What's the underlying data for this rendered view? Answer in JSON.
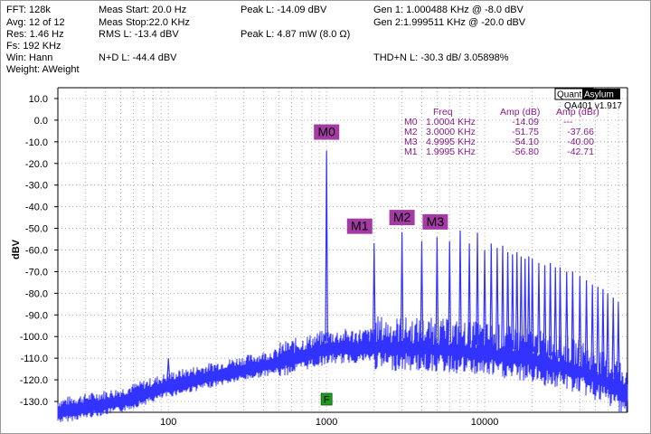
{
  "header": {
    "fft": "FFT: 128k",
    "avg": "Avg: 12 of 12",
    "res": "Res: 1.46 Hz",
    "fs": "Fs: 192 KHz",
    "win": "Win: Hann",
    "weight": "Weight: AWeight",
    "meas_start": "Meas Start: 20.0 Hz",
    "meas_stop": "Meas Stop:22.0 KHz",
    "rms_l": "RMS L: -13.4 dBV",
    "nd_l": "N+D L: -44.4 dBV",
    "peak_l_dbv": "Peak L: -14.09 dBV",
    "peak_l_mw": "Peak L: 4.87 mW (8.0 Ω)",
    "gen1": "Gen 1: 1.000488 KHz @ -8.0  dBV",
    "gen2": "Gen 2:1.999511 KHz @ -20.0  dBV",
    "thd_n": "THD+N L: -30.3 dB/ 3.05898%"
  },
  "brand": {
    "left": "Quant",
    "right": "Asylum",
    "version": "QA401 v1.917"
  },
  "marker_table": {
    "headers": [
      "Freq",
      "Amp (dB)",
      "Amp (dBr)"
    ],
    "rows": [
      {
        "name": "M0",
        "freq": "1.0004 KHz",
        "amp": "-14.09",
        "ampr": "---"
      },
      {
        "name": "M2",
        "freq": "3.0000 KHz",
        "amp": "-51.75",
        "ampr": "-37.66"
      },
      {
        "name": "M3",
        "freq": "4.9995 KHz",
        "amp": "-54.10",
        "ampr": "-40.00"
      },
      {
        "name": "M1",
        "freq": "1.9995 KHz",
        "amp": "-56.80",
        "ampr": "-42.71"
      }
    ]
  },
  "colors": {
    "trace": "#3333ff",
    "marker_fill": "#a43aa4",
    "marker_text": "#8b1a8b",
    "f_marker": "#1f9a1f",
    "grid": "#9a9a9a"
  },
  "chart_data": {
    "type": "line",
    "x_scale": "log",
    "xlim": [
      20,
      80000
    ],
    "ylim": [
      -135,
      15
    ],
    "ylabel": "dBV",
    "xlabel": "",
    "grid": true,
    "x_ticks": [
      100,
      1000,
      10000
    ],
    "x_tick_labels": [
      "100",
      "1000",
      "10000"
    ],
    "y_ticks": [
      10,
      0,
      -10,
      -20,
      -30,
      -40,
      -50,
      -60,
      -70,
      -80,
      -90,
      -100,
      -110,
      -120,
      -130
    ],
    "y_tick_labels": [
      "10.0",
      "0.0",
      "-10.0",
      "-20.0",
      "-30.0",
      "-40.0",
      "-50.0",
      "-60.0",
      "-70.0",
      "-80.0",
      "-90.0",
      "-100.0",
      "-110.0",
      "-120.0",
      "-130.0"
    ],
    "peaks": [
      {
        "freq": 100,
        "amp": -110
      },
      {
        "freq": 1000.4,
        "amp": -14.09
      },
      {
        "freq": 1999.5,
        "amp": -56.8
      },
      {
        "freq": 3000,
        "amp": -51.75
      },
      {
        "freq": 4000,
        "amp": -56
      },
      {
        "freq": 4999.5,
        "amp": -54.1
      },
      {
        "freq": 6000,
        "amp": -56
      },
      {
        "freq": 7000,
        "amp": -51
      },
      {
        "freq": 8000,
        "amp": -57
      },
      {
        "freq": 9000,
        "amp": -52
      },
      {
        "freq": 10000,
        "amp": -60
      },
      {
        "freq": 11000,
        "amp": -57
      },
      {
        "freq": 12000,
        "amp": -59
      },
      {
        "freq": 13000,
        "amp": -58
      },
      {
        "freq": 14000,
        "amp": -61
      },
      {
        "freq": 15000,
        "amp": -62
      },
      {
        "freq": 16000,
        "amp": -61
      },
      {
        "freq": 17000,
        "amp": -63
      },
      {
        "freq": 18000,
        "amp": -64
      },
      {
        "freq": 19000,
        "amp": -63
      },
      {
        "freq": 20000,
        "amp": -64
      },
      {
        "freq": 22000,
        "amp": -66
      },
      {
        "freq": 24000,
        "amp": -67
      },
      {
        "freq": 26000,
        "amp": -66
      },
      {
        "freq": 28000,
        "amp": -68
      },
      {
        "freq": 30000,
        "amp": -68
      },
      {
        "freq": 33000,
        "amp": -70
      },
      {
        "freq": 36000,
        "amp": -70
      },
      {
        "freq": 40000,
        "amp": -72
      },
      {
        "freq": 44000,
        "amp": -74
      },
      {
        "freq": 48000,
        "amp": -76
      },
      {
        "freq": 52000,
        "amp": -77
      },
      {
        "freq": 56000,
        "amp": -78
      },
      {
        "freq": 60000,
        "amp": -80
      },
      {
        "freq": 65000,
        "amp": -82
      },
      {
        "freq": 70000,
        "amp": -84
      }
    ],
    "noise_floor": [
      {
        "freq": 20,
        "amp": -133
      },
      {
        "freq": 50,
        "amp": -128
      },
      {
        "freq": 100,
        "amp": -121
      },
      {
        "freq": 200,
        "amp": -116
      },
      {
        "freq": 500,
        "amp": -110
      },
      {
        "freq": 1000,
        "amp": -104
      },
      {
        "freq": 2000,
        "amp": -103
      },
      {
        "freq": 5000,
        "amp": -104
      },
      {
        "freq": 10000,
        "amp": -106
      },
      {
        "freq": 20000,
        "amp": -109
      },
      {
        "freq": 40000,
        "amp": -114
      },
      {
        "freq": 80000,
        "amp": -124
      }
    ],
    "markers": [
      {
        "name": "M0",
        "freq": 1000.4,
        "amp": -14.09,
        "label_amp": -5.5
      },
      {
        "name": "M1",
        "freq": 1999.5,
        "amp": -56.8,
        "label_amp": -49
      },
      {
        "name": "M2",
        "freq": 3000,
        "amp": -51.75,
        "label_amp": -45
      },
      {
        "name": "M3",
        "freq": 4999.5,
        "amp": -54.1,
        "label_amp": -47
      }
    ],
    "f_marker": {
      "label": "F",
      "freq": 1000.4
    }
  }
}
